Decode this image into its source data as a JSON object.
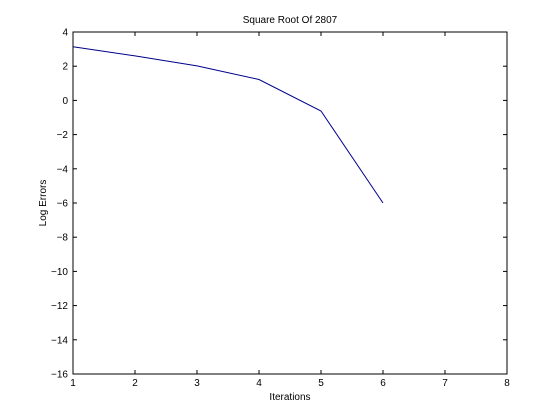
{
  "chart_data": {
    "type": "line",
    "title": "Square Root Of 2807",
    "xlabel": "Iterations",
    "ylabel": "Log Errors",
    "xlim": [
      1,
      8
    ],
    "ylim": [
      -16,
      4
    ],
    "xticks": [
      1,
      2,
      3,
      4,
      5,
      6,
      7,
      8
    ],
    "yticks": [
      4,
      2,
      0,
      -2,
      -4,
      -6,
      -8,
      -10,
      -12,
      -14,
      -16
    ],
    "grid": false,
    "colors": {
      "line": "#00008b",
      "axes": "#000000",
      "background": "#ffffff"
    },
    "series": [
      {
        "x": [
          1,
          2,
          3,
          4,
          5,
          6
        ],
        "values": [
          3.14,
          2.6,
          2.02,
          1.22,
          -0.62,
          -6.0
        ]
      }
    ]
  }
}
